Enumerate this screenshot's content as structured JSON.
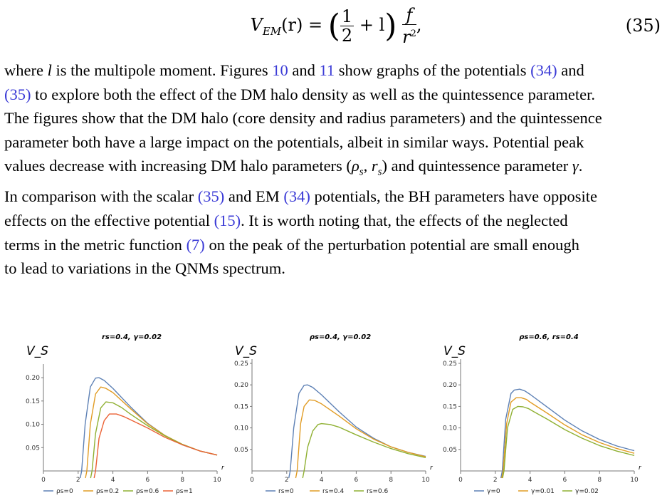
{
  "equation": {
    "lhs": "V",
    "lhs_sub": "EM",
    "lhs_arg": "(r) =",
    "frac1_num": "1",
    "frac1_den": "2",
    "mid": "+ l",
    "frac2_num": "f",
    "frac2_den": "r",
    "frac2_den_sup": "2",
    "tail": ",",
    "number": "(35)"
  },
  "paragraph": {
    "lines": [
      [
        {
          "t": "where "
        },
        {
          "t": "l",
          "i": true
        },
        {
          "t": " is the multipole moment. Figures "
        },
        {
          "t": "10",
          "r": true
        },
        {
          "t": " and "
        },
        {
          "t": "11",
          "r": true
        },
        {
          "t": " show graphs of the potentials "
        },
        {
          "t": "(34)",
          "r": true
        },
        {
          "t": " and"
        }
      ],
      [
        {
          "t": "(35)",
          "r": true
        },
        {
          "t": " to explore both the effect of the DM halo density as well as the quintessence parameter."
        }
      ],
      [
        {
          "t": "The figures show that the DM halo (core density and radius parameters) and the quintessence"
        }
      ],
      [
        {
          "t": "parameter both have a large impact on the potentials, albeit in similar ways. Potential peak"
        }
      ],
      [
        {
          "t": "values decrease with increasing DM halo parameters ("
        },
        {
          "t": "ρ",
          "i": true
        },
        {
          "t": "s",
          "i": true,
          "sub": true
        },
        {
          "t": ", "
        },
        {
          "t": "r",
          "i": true
        },
        {
          "t": "s",
          "i": true,
          "sub": true
        },
        {
          "t": ") and quintessence parameter "
        },
        {
          "t": "γ",
          "i": true
        },
        {
          "t": "."
        }
      ],
      [
        {
          "t": "In comparison with the scalar "
        },
        {
          "t": "(35)",
          "r": true
        },
        {
          "t": " and EM "
        },
        {
          "t": "(34)",
          "r": true
        },
        {
          "t": " potentials, the BH parameters have opposite"
        }
      ],
      [
        {
          "t": "effects on the effective potential "
        },
        {
          "t": "(15)",
          "r": true
        },
        {
          "t": ". It is worth noting that, the effects of the neglected"
        }
      ],
      [
        {
          "t": "terms in the metric function "
        },
        {
          "t": "(7)",
          "r": true
        },
        {
          "t": " on the peak of the perturbation potential are small enough"
        }
      ],
      [
        {
          "t": "to lead to variations in the QNMs spectrum."
        }
      ]
    ]
  },
  "colors": {
    "ref": "#3a3ad6",
    "blue": "#5e81b5",
    "orange": "#e19c24",
    "green": "#8fb032",
    "red": "#eb6235"
  },
  "chart_data": [
    {
      "type": "line",
      "title": "rs=0.4, γ=0.02",
      "ylabel": "V_S",
      "xlabel": "r",
      "xlim": [
        0,
        10
      ],
      "ylim": [
        0,
        0.22
      ],
      "xticks": [
        0,
        2,
        4,
        6,
        8,
        10
      ],
      "yticks": [
        0.05,
        0.1,
        0.15,
        0.2
      ],
      "ytick_labels": [
        "0.05",
        "0.10",
        "0.15",
        "0.20"
      ],
      "series": [
        {
          "name": "ρs=0",
          "color": "#5e81b5",
          "x": [
            2.2,
            2.4,
            2.7,
            3.0,
            3.2,
            3.5,
            4.0,
            5.0,
            6.0,
            7.0,
            8.0,
            9.0,
            10.0
          ],
          "y": [
            0.0,
            0.1,
            0.18,
            0.199,
            0.2,
            0.194,
            0.177,
            0.138,
            0.102,
            0.076,
            0.056,
            0.043,
            0.034
          ]
        },
        {
          "name": "ρs=0.2",
          "color": "#e19c24",
          "x": [
            2.5,
            2.7,
            3.0,
            3.3,
            3.6,
            4.0,
            5.0,
            6.0,
            7.0,
            8.0,
            9.0,
            10.0
          ],
          "y": [
            0.0,
            0.1,
            0.165,
            0.18,
            0.177,
            0.168,
            0.134,
            0.101,
            0.076,
            0.057,
            0.043,
            0.034
          ]
        },
        {
          "name": "ρs=0.6",
          "color": "#8fb032",
          "x": [
            2.8,
            3.0,
            3.3,
            3.6,
            4.0,
            4.5,
            5.0,
            6.0,
            7.0,
            8.0,
            9.0,
            10.0
          ],
          "y": [
            0.0,
            0.08,
            0.135,
            0.148,
            0.146,
            0.136,
            0.122,
            0.097,
            0.075,
            0.057,
            0.043,
            0.034
          ]
        },
        {
          "name": "ρs=1",
          "color": "#eb6235",
          "x": [
            3.0,
            3.2,
            3.5,
            3.8,
            4.2,
            4.6,
            5.0,
            6.0,
            7.0,
            8.0,
            9.0,
            10.0
          ],
          "y": [
            0.0,
            0.07,
            0.108,
            0.122,
            0.122,
            0.117,
            0.11,
            0.092,
            0.072,
            0.056,
            0.043,
            0.034
          ]
        }
      ]
    },
    {
      "type": "line",
      "title": "ρs=0.4, γ=0.02",
      "ylabel": "V_S",
      "xlabel": "r",
      "xlim": [
        0,
        10
      ],
      "ylim": [
        0,
        0.25
      ],
      "xticks": [
        0,
        2,
        4,
        6,
        8,
        10
      ],
      "yticks": [
        0.05,
        0.1,
        0.15,
        0.2,
        0.25
      ],
      "ytick_labels": [
        "0.05",
        "0.10",
        "0.15",
        "0.20",
        "0.25"
      ],
      "series": [
        {
          "name": "rs=0",
          "color": "#5e81b5",
          "x": [
            2.2,
            2.4,
            2.7,
            3.0,
            3.2,
            3.5,
            4.0,
            5.0,
            6.0,
            7.0,
            8.0,
            9.0,
            10.0
          ],
          "y": [
            0.0,
            0.1,
            0.18,
            0.199,
            0.2,
            0.194,
            0.177,
            0.138,
            0.102,
            0.076,
            0.056,
            0.043,
            0.034
          ]
        },
        {
          "name": "rs=0.4",
          "color": "#e19c24",
          "x": [
            2.6,
            2.8,
            3.0,
            3.3,
            3.6,
            4.0,
            5.0,
            6.0,
            7.0,
            8.0,
            9.0,
            10.0
          ],
          "y": [
            0.0,
            0.11,
            0.15,
            0.165,
            0.164,
            0.156,
            0.128,
            0.098,
            0.074,
            0.056,
            0.043,
            0.033
          ]
        },
        {
          "name": "rs=0.6",
          "color": "#8fb032",
          "x": [
            3.0,
            3.2,
            3.5,
            3.8,
            4.0,
            4.5,
            5.0,
            6.0,
            7.0,
            8.0,
            9.0,
            10.0
          ],
          "y": [
            0.0,
            0.055,
            0.093,
            0.108,
            0.11,
            0.108,
            0.102,
            0.084,
            0.067,
            0.052,
            0.04,
            0.031
          ]
        }
      ]
    },
    {
      "type": "line",
      "title": "ρs=0.6, rs=0.4",
      "ylabel": "V_S",
      "xlabel": "r",
      "xlim": [
        0,
        10
      ],
      "ylim": [
        0,
        0.25
      ],
      "xticks": [
        0,
        2,
        4,
        6,
        8,
        10
      ],
      "yticks": [
        0.05,
        0.1,
        0.15,
        0.2,
        0.25
      ],
      "ytick_labels": [
        "0.05",
        "0.10",
        "0.15",
        "0.20",
        "0.25"
      ],
      "series": [
        {
          "name": "γ=0",
          "color": "#5e81b5",
          "x": [
            2.4,
            2.6,
            2.9,
            3.1,
            3.4,
            3.7,
            4.0,
            5.0,
            6.0,
            7.0,
            8.0,
            9.0,
            10.0
          ],
          "y": [
            0.0,
            0.12,
            0.18,
            0.188,
            0.19,
            0.186,
            0.178,
            0.148,
            0.118,
            0.093,
            0.073,
            0.058,
            0.047
          ]
        },
        {
          "name": "γ=0.01",
          "color": "#e19c24",
          "x": [
            2.45,
            2.65,
            2.9,
            3.2,
            3.5,
            3.8,
            4.0,
            5.0,
            6.0,
            7.0,
            8.0,
            9.0,
            10.0
          ],
          "y": [
            0.0,
            0.11,
            0.16,
            0.17,
            0.17,
            0.166,
            0.16,
            0.134,
            0.107,
            0.084,
            0.066,
            0.052,
            0.041
          ]
        },
        {
          "name": "γ=0.02",
          "color": "#8fb032",
          "x": [
            2.5,
            2.7,
            3.0,
            3.3,
            3.6,
            3.9,
            4.2,
            5.0,
            6.0,
            7.0,
            8.0,
            9.0,
            10.0
          ],
          "y": [
            0.0,
            0.1,
            0.143,
            0.15,
            0.149,
            0.145,
            0.138,
            0.12,
            0.096,
            0.076,
            0.059,
            0.046,
            0.036
          ]
        }
      ]
    }
  ]
}
